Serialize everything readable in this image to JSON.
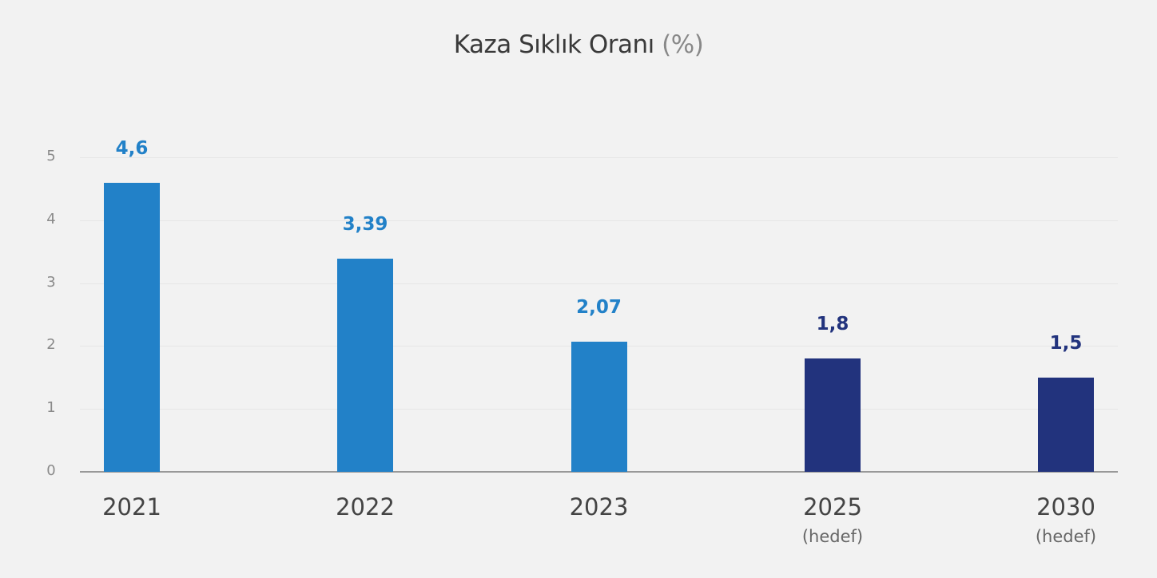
{
  "title": {
    "main": "Kaza Sıklık Oranı",
    "unit": "(%)"
  },
  "chart_data": {
    "type": "bar",
    "title": "Kaza Sıklık Oranı (%)",
    "categories": [
      "2021",
      "2022",
      "2023",
      "2025",
      "2030"
    ],
    "category_sublabels": [
      "",
      "",
      "",
      "(hedef)",
      "(hedef)"
    ],
    "values": [
      4.6,
      3.39,
      2.07,
      1.8,
      1.5
    ],
    "value_labels": [
      "4,6",
      "3,39",
      "2,07",
      "1,8",
      "1,5"
    ],
    "colors": [
      "#2281c8",
      "#2281c8",
      "#2281c8",
      "#22337d",
      "#22337d"
    ],
    "xlabel": "",
    "ylabel": "",
    "ylim": [
      0,
      5
    ],
    "yticks": [
      "0",
      "1",
      "2",
      "3",
      "4",
      "5"
    ],
    "grid": true,
    "legend": null
  }
}
